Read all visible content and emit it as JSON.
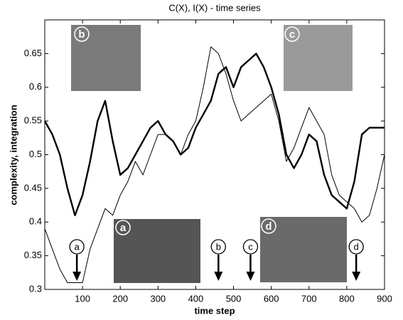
{
  "chart_data": {
    "type": "line",
    "title": "C(X), I(X) - time series",
    "xlabel": "time step",
    "ylabel": "complexity, integration",
    "xlim": [
      0,
      900
    ],
    "ylim": [
      0.3,
      0.7
    ],
    "xticks": [
      100,
      200,
      300,
      400,
      500,
      600,
      700,
      800,
      900
    ],
    "yticks": [
      0.3,
      0.35,
      0.4,
      0.45,
      0.5,
      0.55,
      0.6,
      0.65
    ],
    "x": [
      0,
      20,
      40,
      60,
      80,
      100,
      120,
      140,
      160,
      180,
      200,
      220,
      240,
      260,
      280,
      300,
      320,
      340,
      360,
      380,
      400,
      420,
      440,
      460,
      480,
      500,
      520,
      540,
      560,
      580,
      600,
      620,
      640,
      660,
      680,
      700,
      720,
      740,
      760,
      780,
      800,
      820,
      840,
      860,
      880,
      900
    ],
    "series": [
      {
        "color": "#000000",
        "width": 2.4,
        "values": [
          0.55,
          0.53,
          0.5,
          0.45,
          0.41,
          0.44,
          0.49,
          0.55,
          0.58,
          0.52,
          0.47,
          0.48,
          0.5,
          0.52,
          0.54,
          0.55,
          0.53,
          0.52,
          0.5,
          0.51,
          0.54,
          0.56,
          0.58,
          0.62,
          0.63,
          0.6,
          0.63,
          0.64,
          0.65,
          0.63,
          0.6,
          0.56,
          0.5,
          0.48,
          0.5,
          0.53,
          0.52,
          0.47,
          0.44,
          0.43,
          0.42,
          0.46,
          0.53,
          0.54,
          0.54,
          0.54
        ]
      },
      {
        "color": "#000000",
        "width": 1,
        "values": [
          0.39,
          0.36,
          0.33,
          0.31,
          0.31,
          0.31,
          0.36,
          0.39,
          0.42,
          0.41,
          0.44,
          0.46,
          0.49,
          0.47,
          0.5,
          0.53,
          0.53,
          0.52,
          0.5,
          0.53,
          0.55,
          0.6,
          0.66,
          0.65,
          0.62,
          0.58,
          0.55,
          0.56,
          0.57,
          0.58,
          0.59,
          0.55,
          0.49,
          0.51,
          0.54,
          0.57,
          0.55,
          0.53,
          0.47,
          0.44,
          0.43,
          0.42,
          0.4,
          0.41,
          0.45,
          0.5
        ]
      }
    ],
    "events": [
      {
        "label": "a",
        "x": 85
      },
      {
        "label": "b",
        "x": 460
      },
      {
        "label": "c",
        "x": 545
      },
      {
        "label": "d",
        "x": 825
      }
    ]
  }
}
